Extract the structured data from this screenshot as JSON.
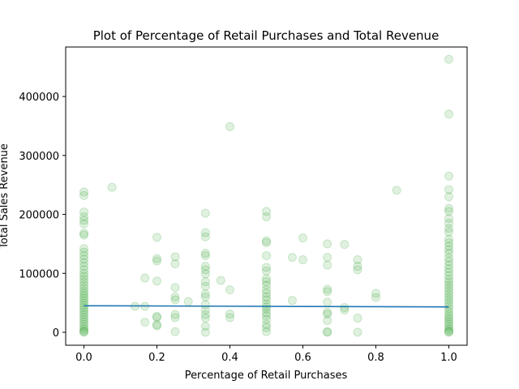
{
  "chart_data": {
    "type": "scatter",
    "title": "Plot of Percentage of Retail Purchases and Total Revenue",
    "xlabel": "Percentage of Retail Purchases",
    "ylabel": "Total Sales Revenue",
    "xlim": [
      -0.05,
      1.05
    ],
    "ylim": [
      -22000,
      484000
    ],
    "xticks": [
      0.0,
      0.2,
      0.4,
      0.6,
      0.8,
      1.0
    ],
    "xtick_labels": [
      "0.0",
      "0.2",
      "0.4",
      "0.6",
      "0.8",
      "1.0"
    ],
    "yticks": [
      0,
      100000,
      200000,
      300000,
      400000
    ],
    "ytick_labels": [
      "0",
      "100000",
      "200000",
      "300000",
      "400000"
    ],
    "grid": false,
    "series": [
      {
        "kind": "scatter",
        "color": "#2ca02c",
        "points": [
          [
            0,
            238000
          ],
          [
            0,
            232000
          ],
          [
            0,
            204000
          ],
          [
            0,
            196000
          ],
          [
            0,
            190000
          ],
          [
            0,
            184000
          ],
          [
            0,
            168000
          ],
          [
            0,
            165000
          ],
          [
            0,
            142000
          ],
          [
            0,
            136000
          ],
          [
            0,
            130000
          ],
          [
            0,
            124000
          ],
          [
            0,
            118000
          ],
          [
            0,
            112000
          ],
          [
            0,
            106000
          ],
          [
            0,
            100000
          ],
          [
            0,
            95000
          ],
          [
            0,
            90000
          ],
          [
            0,
            85000
          ],
          [
            0,
            80000
          ],
          [
            0,
            75000
          ],
          [
            0,
            70000
          ],
          [
            0,
            66000
          ],
          [
            0,
            62000
          ],
          [
            0,
            58000
          ],
          [
            0,
            54000
          ],
          [
            0,
            50000
          ],
          [
            0,
            46000
          ],
          [
            0,
            42000
          ],
          [
            0,
            38000
          ],
          [
            0,
            34000
          ],
          [
            0,
            30000
          ],
          [
            0,
            26000
          ],
          [
            0,
            22000
          ],
          [
            0,
            18000
          ],
          [
            0,
            14000
          ],
          [
            0,
            10000
          ],
          [
            0,
            6000
          ],
          [
            0,
            3000
          ],
          [
            0,
            1000
          ],
          [
            0,
            0
          ],
          [
            0.077,
            246000
          ],
          [
            0.14,
            44000
          ],
          [
            0.167,
            92000
          ],
          [
            0.167,
            44000
          ],
          [
            0.167,
            17000
          ],
          [
            0.2,
            161000
          ],
          [
            0.2,
            125000
          ],
          [
            0.2,
            121000
          ],
          [
            0.2,
            87000
          ],
          [
            0.2,
            27000
          ],
          [
            0.2,
            25000
          ],
          [
            0.2,
            13000
          ],
          [
            0.2,
            11000
          ],
          [
            0.25,
            128000
          ],
          [
            0.25,
            116000
          ],
          [
            0.25,
            76000
          ],
          [
            0.25,
            60000
          ],
          [
            0.25,
            55000
          ],
          [
            0.25,
            30000
          ],
          [
            0.25,
            25000
          ],
          [
            0.25,
            1000
          ],
          [
            0.286,
            52000
          ],
          [
            0.333,
            202000
          ],
          [
            0.333,
            169000
          ],
          [
            0.333,
            162000
          ],
          [
            0.333,
            134000
          ],
          [
            0.333,
            130000
          ],
          [
            0.333,
            112000
          ],
          [
            0.333,
            106000
          ],
          [
            0.333,
            99000
          ],
          [
            0.333,
            86000
          ],
          [
            0.333,
            78000
          ],
          [
            0.333,
            65000
          ],
          [
            0.333,
            60000
          ],
          [
            0.333,
            47000
          ],
          [
            0.333,
            38000
          ],
          [
            0.333,
            30000
          ],
          [
            0.333,
            24000
          ],
          [
            0.333,
            10000
          ],
          [
            0.333,
            0
          ],
          [
            0.375,
            88000
          ],
          [
            0.4,
            349000
          ],
          [
            0.4,
            72000
          ],
          [
            0.4,
            31000
          ],
          [
            0.4,
            25000
          ],
          [
            0.5,
            205000
          ],
          [
            0.5,
            196000
          ],
          [
            0.5,
            155000
          ],
          [
            0.5,
            152000
          ],
          [
            0.5,
            130000
          ],
          [
            0.5,
            110000
          ],
          [
            0.5,
            104000
          ],
          [
            0.5,
            91000
          ],
          [
            0.5,
            86000
          ],
          [
            0.5,
            80000
          ],
          [
            0.5,
            72000
          ],
          [
            0.5,
            66000
          ],
          [
            0.5,
            60000
          ],
          [
            0.5,
            55000
          ],
          [
            0.5,
            48000
          ],
          [
            0.5,
            43000
          ],
          [
            0.5,
            39000
          ],
          [
            0.5,
            33000
          ],
          [
            0.5,
            28000
          ],
          [
            0.5,
            22000
          ],
          [
            0.5,
            13000
          ],
          [
            0.5,
            8000
          ],
          [
            0.5,
            1000
          ],
          [
            0.571,
            127000
          ],
          [
            0.571,
            54000
          ],
          [
            0.6,
            160000
          ],
          [
            0.6,
            123000
          ],
          [
            0.667,
            150000
          ],
          [
            0.667,
            127000
          ],
          [
            0.667,
            114000
          ],
          [
            0.667,
            73000
          ],
          [
            0.667,
            69000
          ],
          [
            0.667,
            51000
          ],
          [
            0.667,
            34000
          ],
          [
            0.667,
            31000
          ],
          [
            0.667,
            20000
          ],
          [
            0.667,
            1000
          ],
          [
            0.667,
            0
          ],
          [
            0.714,
            149000
          ],
          [
            0.714,
            42000
          ],
          [
            0.714,
            38000
          ],
          [
            0.75,
            123000
          ],
          [
            0.75,
            112000
          ],
          [
            0.75,
            106000
          ],
          [
            0.75,
            24000
          ],
          [
            0.75,
            0
          ],
          [
            0.8,
            66000
          ],
          [
            0.8,
            59000
          ],
          [
            0.857,
            241000
          ],
          [
            1,
            463000
          ],
          [
            1,
            370000
          ],
          [
            1,
            265000
          ],
          [
            1,
            242000
          ],
          [
            1,
            230000
          ],
          [
            1,
            210000
          ],
          [
            1,
            205000
          ],
          [
            1,
            193000
          ],
          [
            1,
            185000
          ],
          [
            1,
            176000
          ],
          [
            1,
            170000
          ],
          [
            1,
            158000
          ],
          [
            1,
            152000
          ],
          [
            1,
            146000
          ],
          [
            1,
            140000
          ],
          [
            1,
            134000
          ],
          [
            1,
            126000
          ],
          [
            1,
            120000
          ],
          [
            1,
            114000
          ],
          [
            1,
            108000
          ],
          [
            1,
            102000
          ],
          [
            1,
            96000
          ],
          [
            1,
            90000
          ],
          [
            1,
            85000
          ],
          [
            1,
            80000
          ],
          [
            1,
            75000
          ],
          [
            1,
            70000
          ],
          [
            1,
            65000
          ],
          [
            1,
            60000
          ],
          [
            1,
            55000
          ],
          [
            1,
            50000
          ],
          [
            1,
            45000
          ],
          [
            1,
            40000
          ],
          [
            1,
            35000
          ],
          [
            1,
            30000
          ],
          [
            1,
            26000
          ],
          [
            1,
            22000
          ],
          [
            1,
            18000
          ],
          [
            1,
            14000
          ],
          [
            1,
            10000
          ],
          [
            1,
            6000
          ],
          [
            1,
            3000
          ],
          [
            1,
            1000
          ],
          [
            1,
            0
          ]
        ]
      },
      {
        "kind": "line",
        "color": "#1f77b4",
        "points": [
          [
            0,
            45000
          ],
          [
            1,
            43000
          ]
        ]
      }
    ]
  }
}
